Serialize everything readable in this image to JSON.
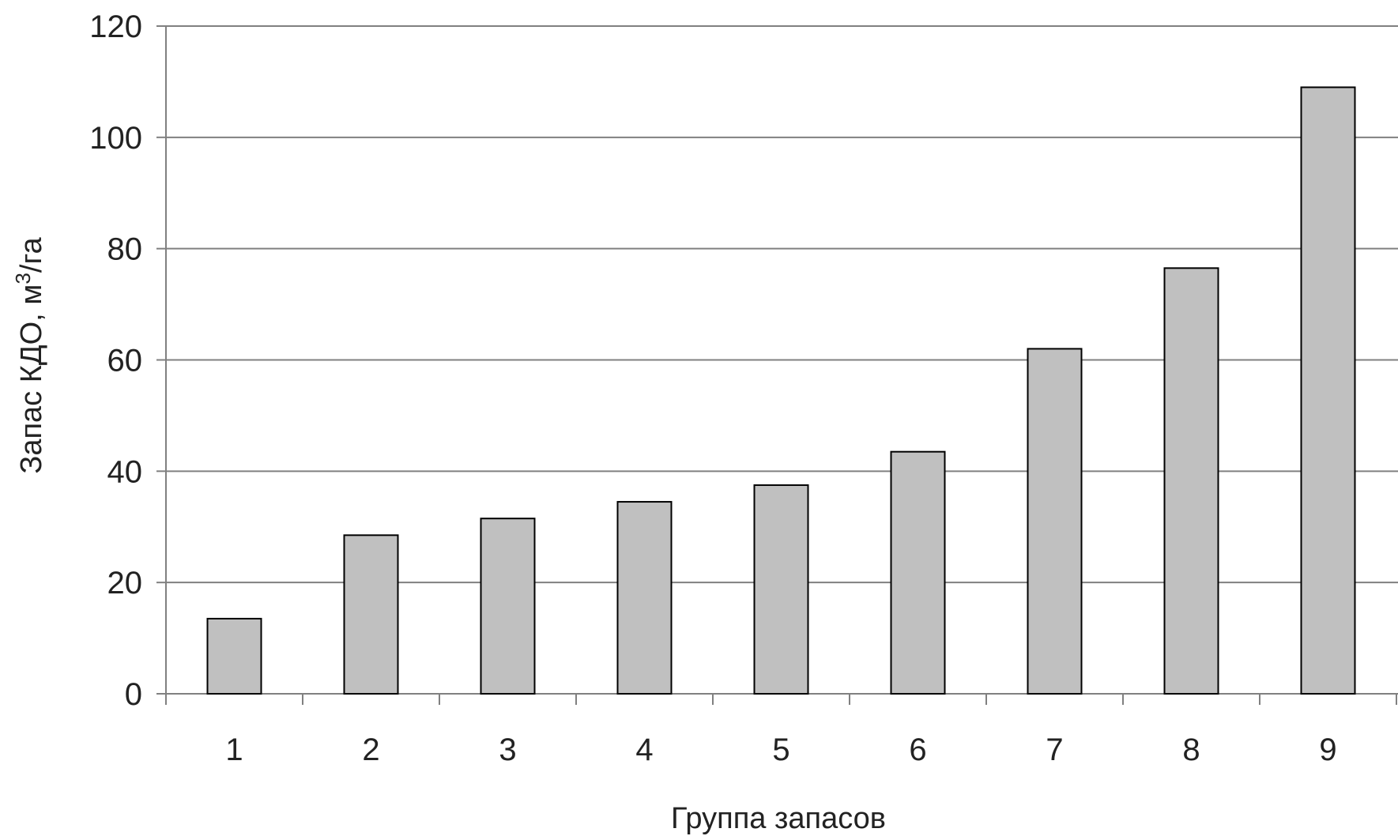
{
  "chart_data": {
    "type": "bar",
    "categories": [
      "1",
      "2",
      "3",
      "4",
      "5",
      "6",
      "7",
      "8",
      "9"
    ],
    "values": [
      13.5,
      28.5,
      31.5,
      34.5,
      37.5,
      43.5,
      62,
      76.5,
      109
    ],
    "title": "",
    "xlabel": "Группа запасов",
    "ylabel": {
      "prefix": "Запас КДО, м",
      "superscript": "3",
      "suffix": "/га"
    },
    "ylim": [
      0,
      120
    ],
    "yticks": [
      "0",
      "20",
      "40",
      "60",
      "80",
      "100",
      "120"
    ],
    "grid": true,
    "legend": "none",
    "colors": {
      "bar_fill": "#c0c0c0",
      "bar_stroke": "#000000",
      "grid": "#808080",
      "axis": "#808080"
    }
  }
}
